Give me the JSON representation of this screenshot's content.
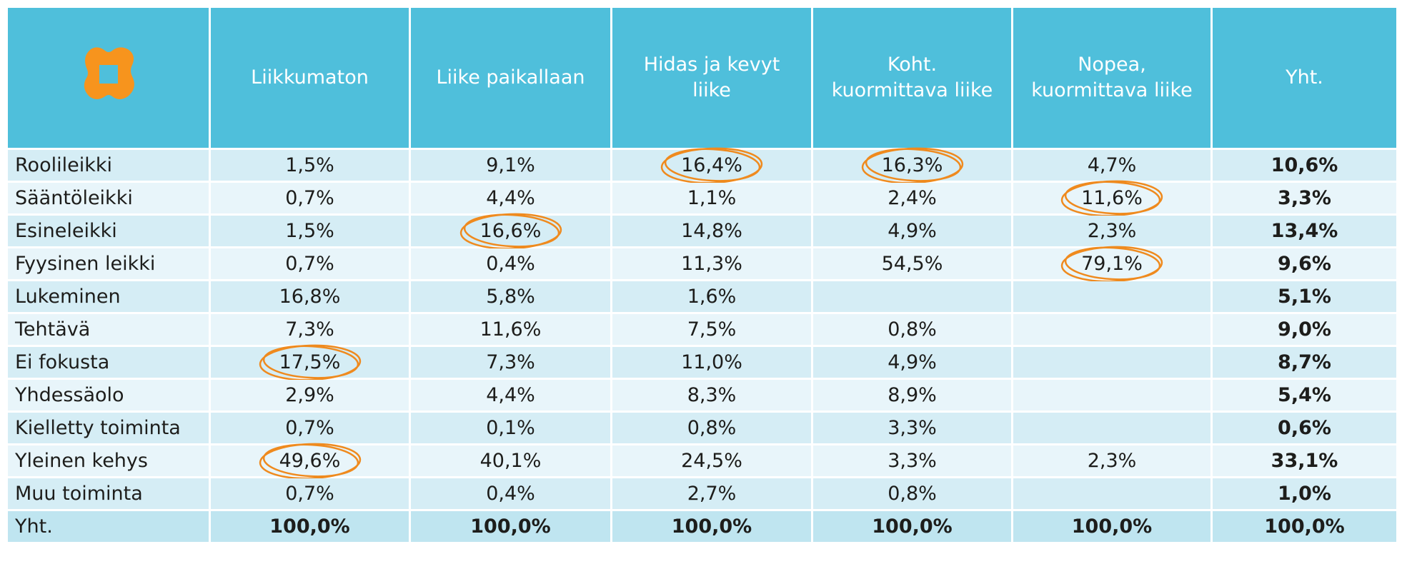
{
  "table": {
    "header": [
      [
        "Liikkumaton"
      ],
      [
        "Liike paikallaan"
      ],
      [
        "Hidas ja kevyt",
        "liike"
      ],
      [
        "Koht.",
        "kuormittava liike"
      ],
      [
        "Nopea,",
        "kuormittava liike"
      ],
      [
        "Yht."
      ]
    ],
    "rows": [
      [
        "Roolileikki",
        "1,5%",
        "9,1%",
        "16,4%",
        "16,3%",
        "4,7%",
        "10,6%"
      ],
      [
        "Sääntöleikki",
        "0,7%",
        "4,4%",
        "1,1%",
        "2,4%",
        "11,6%",
        "3,3%"
      ],
      [
        "Esineleikki",
        "1,5%",
        "16,6%",
        "14,8%",
        "4,9%",
        "2,3%",
        "13,4%"
      ],
      [
        "Fyysinen leikki",
        "0,7%",
        "0,4%",
        "11,3%",
        "54,5%",
        "79,1%",
        "9,6%"
      ],
      [
        "Lukeminen",
        "16,8%",
        "5,8%",
        "1,6%",
        null,
        null,
        "5,1%"
      ],
      [
        "Tehtävä",
        "7,3%",
        "11,6%",
        "7,5%",
        "0,8%",
        null,
        "9,0%"
      ],
      [
        "Ei fokusta",
        "17,5%",
        "7,3%",
        "11,0%",
        "4,9%",
        null,
        "8,7%"
      ],
      [
        "Yhdessäolo",
        "2,9%",
        "4,4%",
        "8,3%",
        "8,9%",
        null,
        "5,4%"
      ],
      [
        "Kielletty toiminta",
        "0,7%",
        "0,1%",
        "0,8%",
        "3,3%",
        null,
        "0,6%"
      ],
      [
        "Yleinen kehys",
        "49,6%",
        "40,1%",
        "24,5%",
        "3,3%",
        "2,3%",
        "33,1%"
      ],
      [
        "Muu toiminta",
        "0,7%",
        "0,4%",
        "2,7%",
        "0,8%",
        null,
        "1,0%"
      ],
      [
        "Yht.",
        "100,0%",
        "100,0%",
        "100,0%",
        "100,0%",
        "100,0%",
        "100,0%"
      ]
    ],
    "circled": [
      [
        0,
        3
      ],
      [
        0,
        4
      ],
      [
        1,
        5
      ],
      [
        2,
        2
      ],
      [
        3,
        5
      ],
      [
        6,
        1
      ],
      [
        9,
        1
      ]
    ],
    "circle_color": "#ef8a1e"
  }
}
